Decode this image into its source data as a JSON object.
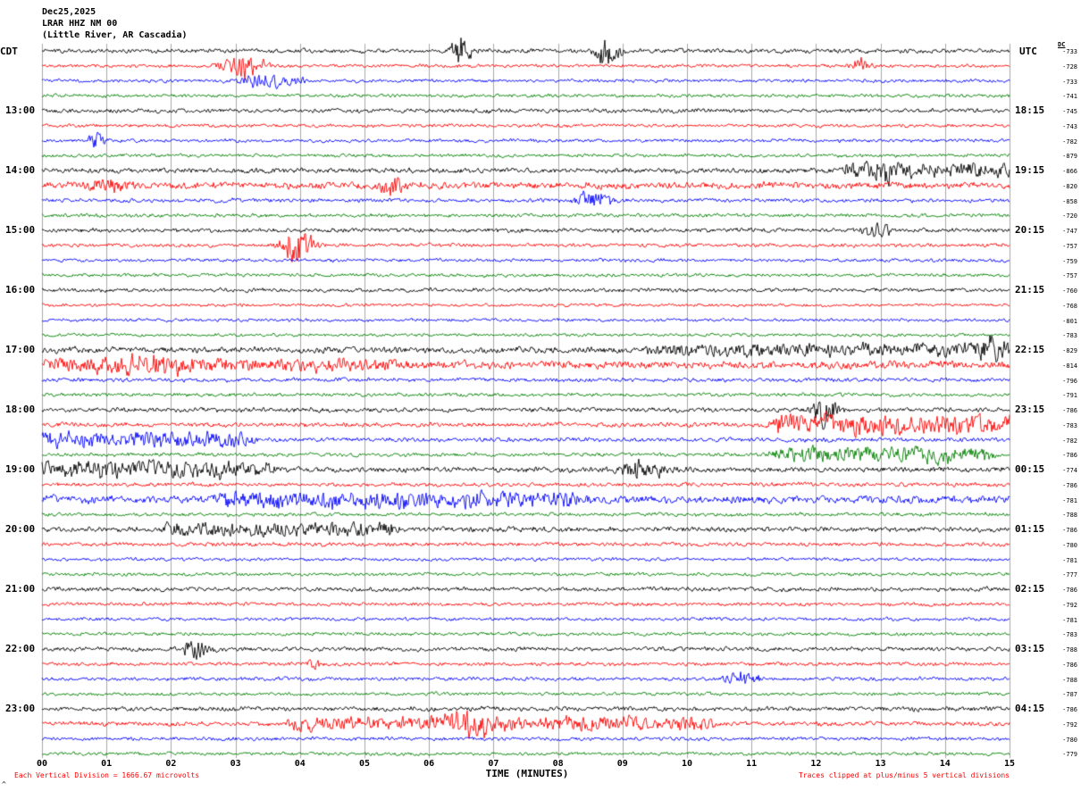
{
  "chart_data": {
    "type": "seismogram-helicorder",
    "title": {
      "date": "Dec25,2025",
      "station": "LRAR HHZ NM 00",
      "location": "(Little River, AR Cascadia)"
    },
    "axes": {
      "left_header": "CDT",
      "right_header": "UTC",
      "dc_header": "DC",
      "x_title": "TIME (MINUTES)",
      "x_ticks": [
        "00",
        "01",
        "02",
        "03",
        "04",
        "05",
        "06",
        "07",
        "08",
        "09",
        "10",
        "11",
        "12",
        "13",
        "14",
        "15"
      ],
      "x_range_minutes": [
        0,
        15
      ],
      "minutes_per_line": 15,
      "grid": "vertical-minute-lines"
    },
    "notes": {
      "left": "Each Vertical Division = 1666.67 microvolts",
      "right": "Traces clipped at plus/minus 5 vertical divisions",
      "corner_mark": "^"
    },
    "colors": {
      "black": "#000000",
      "red": "#ff0000",
      "blue": "#0000ff",
      "green": "#008000",
      "grid": "#a8a8a8",
      "note": "#ff0000"
    },
    "rows": [
      {
        "color": "black",
        "cdt": "",
        "utc": "",
        "dc": "-733",
        "base": 1.5,
        "bursts": [
          [
            6.5,
            0.12,
            19
          ],
          [
            8.75,
            0.15,
            16
          ]
        ],
        "ranges": []
      },
      {
        "color": "red",
        "cdt": "",
        "utc": "",
        "dc": "-728",
        "base": 1.2,
        "bursts": [
          [
            3.15,
            0.3,
            8
          ],
          [
            12.7,
            0.15,
            4
          ]
        ],
        "ranges": []
      },
      {
        "color": "blue",
        "cdt": "",
        "utc": "",
        "dc": "-733",
        "base": 1.2,
        "bursts": [
          [
            3.45,
            0.3,
            6
          ],
          [
            3.95,
            0.12,
            3
          ]
        ],
        "ranges": []
      },
      {
        "color": "green",
        "cdt": "",
        "utc": "",
        "dc": "-741",
        "base": 1.2,
        "bursts": [],
        "ranges": []
      },
      {
        "color": "black",
        "cdt": "13:00",
        "utc": "18:15",
        "dc": "-745",
        "base": 1.5,
        "bursts": [],
        "ranges": []
      },
      {
        "color": "red",
        "cdt": "",
        "utc": "",
        "dc": "-743",
        "base": 1.2,
        "bursts": [],
        "ranges": []
      },
      {
        "color": "blue",
        "cdt": "",
        "utc": "",
        "dc": "-782",
        "base": 1.2,
        "bursts": [
          [
            0.85,
            0.12,
            5
          ]
        ],
        "ranges": []
      },
      {
        "color": "green",
        "cdt": "",
        "utc": "",
        "dc": "-879",
        "base": 1.2,
        "bursts": [],
        "ranges": []
      },
      {
        "color": "black",
        "cdt": "14:00",
        "utc": "19:15",
        "dc": "-866",
        "base": 1.8,
        "bursts": [
          [
            13.0,
            0.2,
            5
          ]
        ],
        "ranges": [
          [
            12.5,
            15,
            3.5
          ]
        ]
      },
      {
        "color": "red",
        "cdt": "",
        "utc": "",
        "dc": "-820",
        "base": 2.4,
        "bursts": [
          [
            1.0,
            0.3,
            4
          ],
          [
            5.45,
            0.2,
            5
          ]
        ],
        "ranges": []
      },
      {
        "color": "blue",
        "cdt": "",
        "utc": "",
        "dc": "-858",
        "base": 1.4,
        "bursts": [
          [
            8.55,
            0.3,
            6
          ]
        ],
        "ranges": []
      },
      {
        "color": "green",
        "cdt": "",
        "utc": "",
        "dc": "-720",
        "base": 1.3,
        "bursts": [],
        "ranges": []
      },
      {
        "color": "black",
        "cdt": "15:00",
        "utc": "20:15",
        "dc": "-747",
        "base": 1.5,
        "bursts": [
          [
            12.95,
            0.2,
            6
          ]
        ],
        "ranges": []
      },
      {
        "color": "red",
        "cdt": "",
        "utc": "",
        "dc": "-757",
        "base": 1.3,
        "bursts": [
          [
            3.95,
            0.25,
            13
          ]
        ],
        "ranges": []
      },
      {
        "color": "blue",
        "cdt": "",
        "utc": "",
        "dc": "-759",
        "base": 1.2,
        "bursts": [],
        "ranges": []
      },
      {
        "color": "green",
        "cdt": "",
        "utc": "",
        "dc": "-757",
        "base": 1.2,
        "bursts": [],
        "ranges": []
      },
      {
        "color": "black",
        "cdt": "16:00",
        "utc": "21:15",
        "dc": "-760",
        "base": 1.4,
        "bursts": [],
        "ranges": []
      },
      {
        "color": "red",
        "cdt": "",
        "utc": "",
        "dc": "-768",
        "base": 1.1,
        "bursts": [],
        "ranges": []
      },
      {
        "color": "blue",
        "cdt": "",
        "utc": "",
        "dc": "-801",
        "base": 1.1,
        "bursts": [],
        "ranges": []
      },
      {
        "color": "green",
        "cdt": "",
        "utc": "",
        "dc": "-783",
        "base": 1.1,
        "bursts": [],
        "ranges": []
      },
      {
        "color": "black",
        "cdt": "17:00",
        "utc": "22:15",
        "dc": "-829",
        "base": 2.2,
        "bursts": [
          [
            14.7,
            0.3,
            5
          ]
        ],
        "ranges": [
          [
            9.5,
            15,
            2.5
          ]
        ]
      },
      {
        "color": "red",
        "cdt": "",
        "utc": "",
        "dc": "-814",
        "base": 2.6,
        "bursts": [
          [
            1.5,
            0.5,
            5
          ]
        ],
        "ranges": [
          [
            0,
            5.5,
            2.5
          ]
        ]
      },
      {
        "color": "blue",
        "cdt": "",
        "utc": "",
        "dc": "-796",
        "base": 1.4,
        "bursts": [],
        "ranges": []
      },
      {
        "color": "green",
        "cdt": "",
        "utc": "",
        "dc": "-791",
        "base": 1.3,
        "bursts": [],
        "ranges": []
      },
      {
        "color": "black",
        "cdt": "18:00",
        "utc": "23:15",
        "dc": "-786",
        "base": 1.6,
        "bursts": [
          [
            12.15,
            0.18,
            10
          ]
        ],
        "ranges": []
      },
      {
        "color": "red",
        "cdt": "",
        "utc": "",
        "dc": "-783",
        "base": 1.6,
        "bursts": [],
        "ranges": [
          [
            11.4,
            15,
            6
          ]
        ]
      },
      {
        "color": "blue",
        "cdt": "",
        "utc": "",
        "dc": "-782",
        "base": 1.5,
        "bursts": [],
        "ranges": [
          [
            0,
            3.2,
            4.5
          ]
        ]
      },
      {
        "color": "green",
        "cdt": "",
        "utc": "",
        "dc": "-786",
        "base": 1.3,
        "bursts": [],
        "ranges": [
          [
            11.4,
            14.6,
            4.5
          ]
        ]
      },
      {
        "color": "black",
        "cdt": "19:00",
        "utc": "00:15",
        "dc": "-774",
        "base": 1.8,
        "bursts": [
          [
            9.35,
            0.35,
            7
          ]
        ],
        "ranges": [
          [
            0,
            3.5,
            4.5
          ]
        ]
      },
      {
        "color": "red",
        "cdt": "",
        "utc": "",
        "dc": "-786",
        "base": 1.4,
        "bursts": [],
        "ranges": []
      },
      {
        "color": "blue",
        "cdt": "",
        "utc": "",
        "dc": "-781",
        "base": 2.8,
        "bursts": [],
        "ranges": [
          [
            2.8,
            8.2,
            3.5
          ]
        ]
      },
      {
        "color": "green",
        "cdt": "",
        "utc": "",
        "dc": "-788",
        "base": 1.3,
        "bursts": [],
        "ranges": []
      },
      {
        "color": "black",
        "cdt": "20:00",
        "utc": "01:15",
        "dc": "-786",
        "base": 1.8,
        "bursts": [],
        "ranges": [
          [
            2.0,
            5.4,
            3.5
          ]
        ]
      },
      {
        "color": "red",
        "cdt": "",
        "utc": "",
        "dc": "-780",
        "base": 1.4,
        "bursts": [],
        "ranges": []
      },
      {
        "color": "blue",
        "cdt": "",
        "utc": "",
        "dc": "-781",
        "base": 1.2,
        "bursts": [],
        "ranges": []
      },
      {
        "color": "green",
        "cdt": "",
        "utc": "",
        "dc": "-777",
        "base": 1.2,
        "bursts": [],
        "ranges": []
      },
      {
        "color": "black",
        "cdt": "21:00",
        "utc": "02:15",
        "dc": "-786",
        "base": 1.5,
        "bursts": [],
        "ranges": []
      },
      {
        "color": "red",
        "cdt": "",
        "utc": "",
        "dc": "-792",
        "base": 1.3,
        "bursts": [],
        "ranges": []
      },
      {
        "color": "blue",
        "cdt": "",
        "utc": "",
        "dc": "-781",
        "base": 1.2,
        "bursts": [],
        "ranges": []
      },
      {
        "color": "green",
        "cdt": "",
        "utc": "",
        "dc": "-783",
        "base": 1.2,
        "bursts": [],
        "ranges": []
      },
      {
        "color": "black",
        "cdt": "22:00",
        "utc": "03:15",
        "dc": "-788",
        "base": 1.5,
        "bursts": [
          [
            2.35,
            0.18,
            8
          ]
        ],
        "ranges": []
      },
      {
        "color": "red",
        "cdt": "",
        "utc": "",
        "dc": "-786",
        "base": 1.3,
        "bursts": [
          [
            4.2,
            0.1,
            3.5
          ]
        ],
        "ranges": []
      },
      {
        "color": "blue",
        "cdt": "",
        "utc": "",
        "dc": "-788",
        "base": 1.3,
        "bursts": [
          [
            10.9,
            0.25,
            5
          ]
        ],
        "ranges": []
      },
      {
        "color": "green",
        "cdt": "",
        "utc": "",
        "dc": "-787",
        "base": 1.2,
        "bursts": [],
        "ranges": []
      },
      {
        "color": "black",
        "cdt": "23:00",
        "utc": "04:15",
        "dc": "-786",
        "base": 1.6,
        "bursts": [],
        "ranges": []
      },
      {
        "color": "red",
        "cdt": "",
        "utc": "",
        "dc": "-792",
        "base": 1.6,
        "bursts": [
          [
            6.6,
            0.4,
            6
          ]
        ],
        "ranges": [
          [
            3.9,
            10.3,
            3.5
          ]
        ]
      },
      {
        "color": "blue",
        "cdt": "",
        "utc": "",
        "dc": "-780",
        "base": 1.3,
        "bursts": [],
        "ranges": []
      },
      {
        "color": "green",
        "cdt": "",
        "utc": "",
        "dc": "-779",
        "base": 1.2,
        "bursts": [],
        "ranges": []
      }
    ]
  }
}
